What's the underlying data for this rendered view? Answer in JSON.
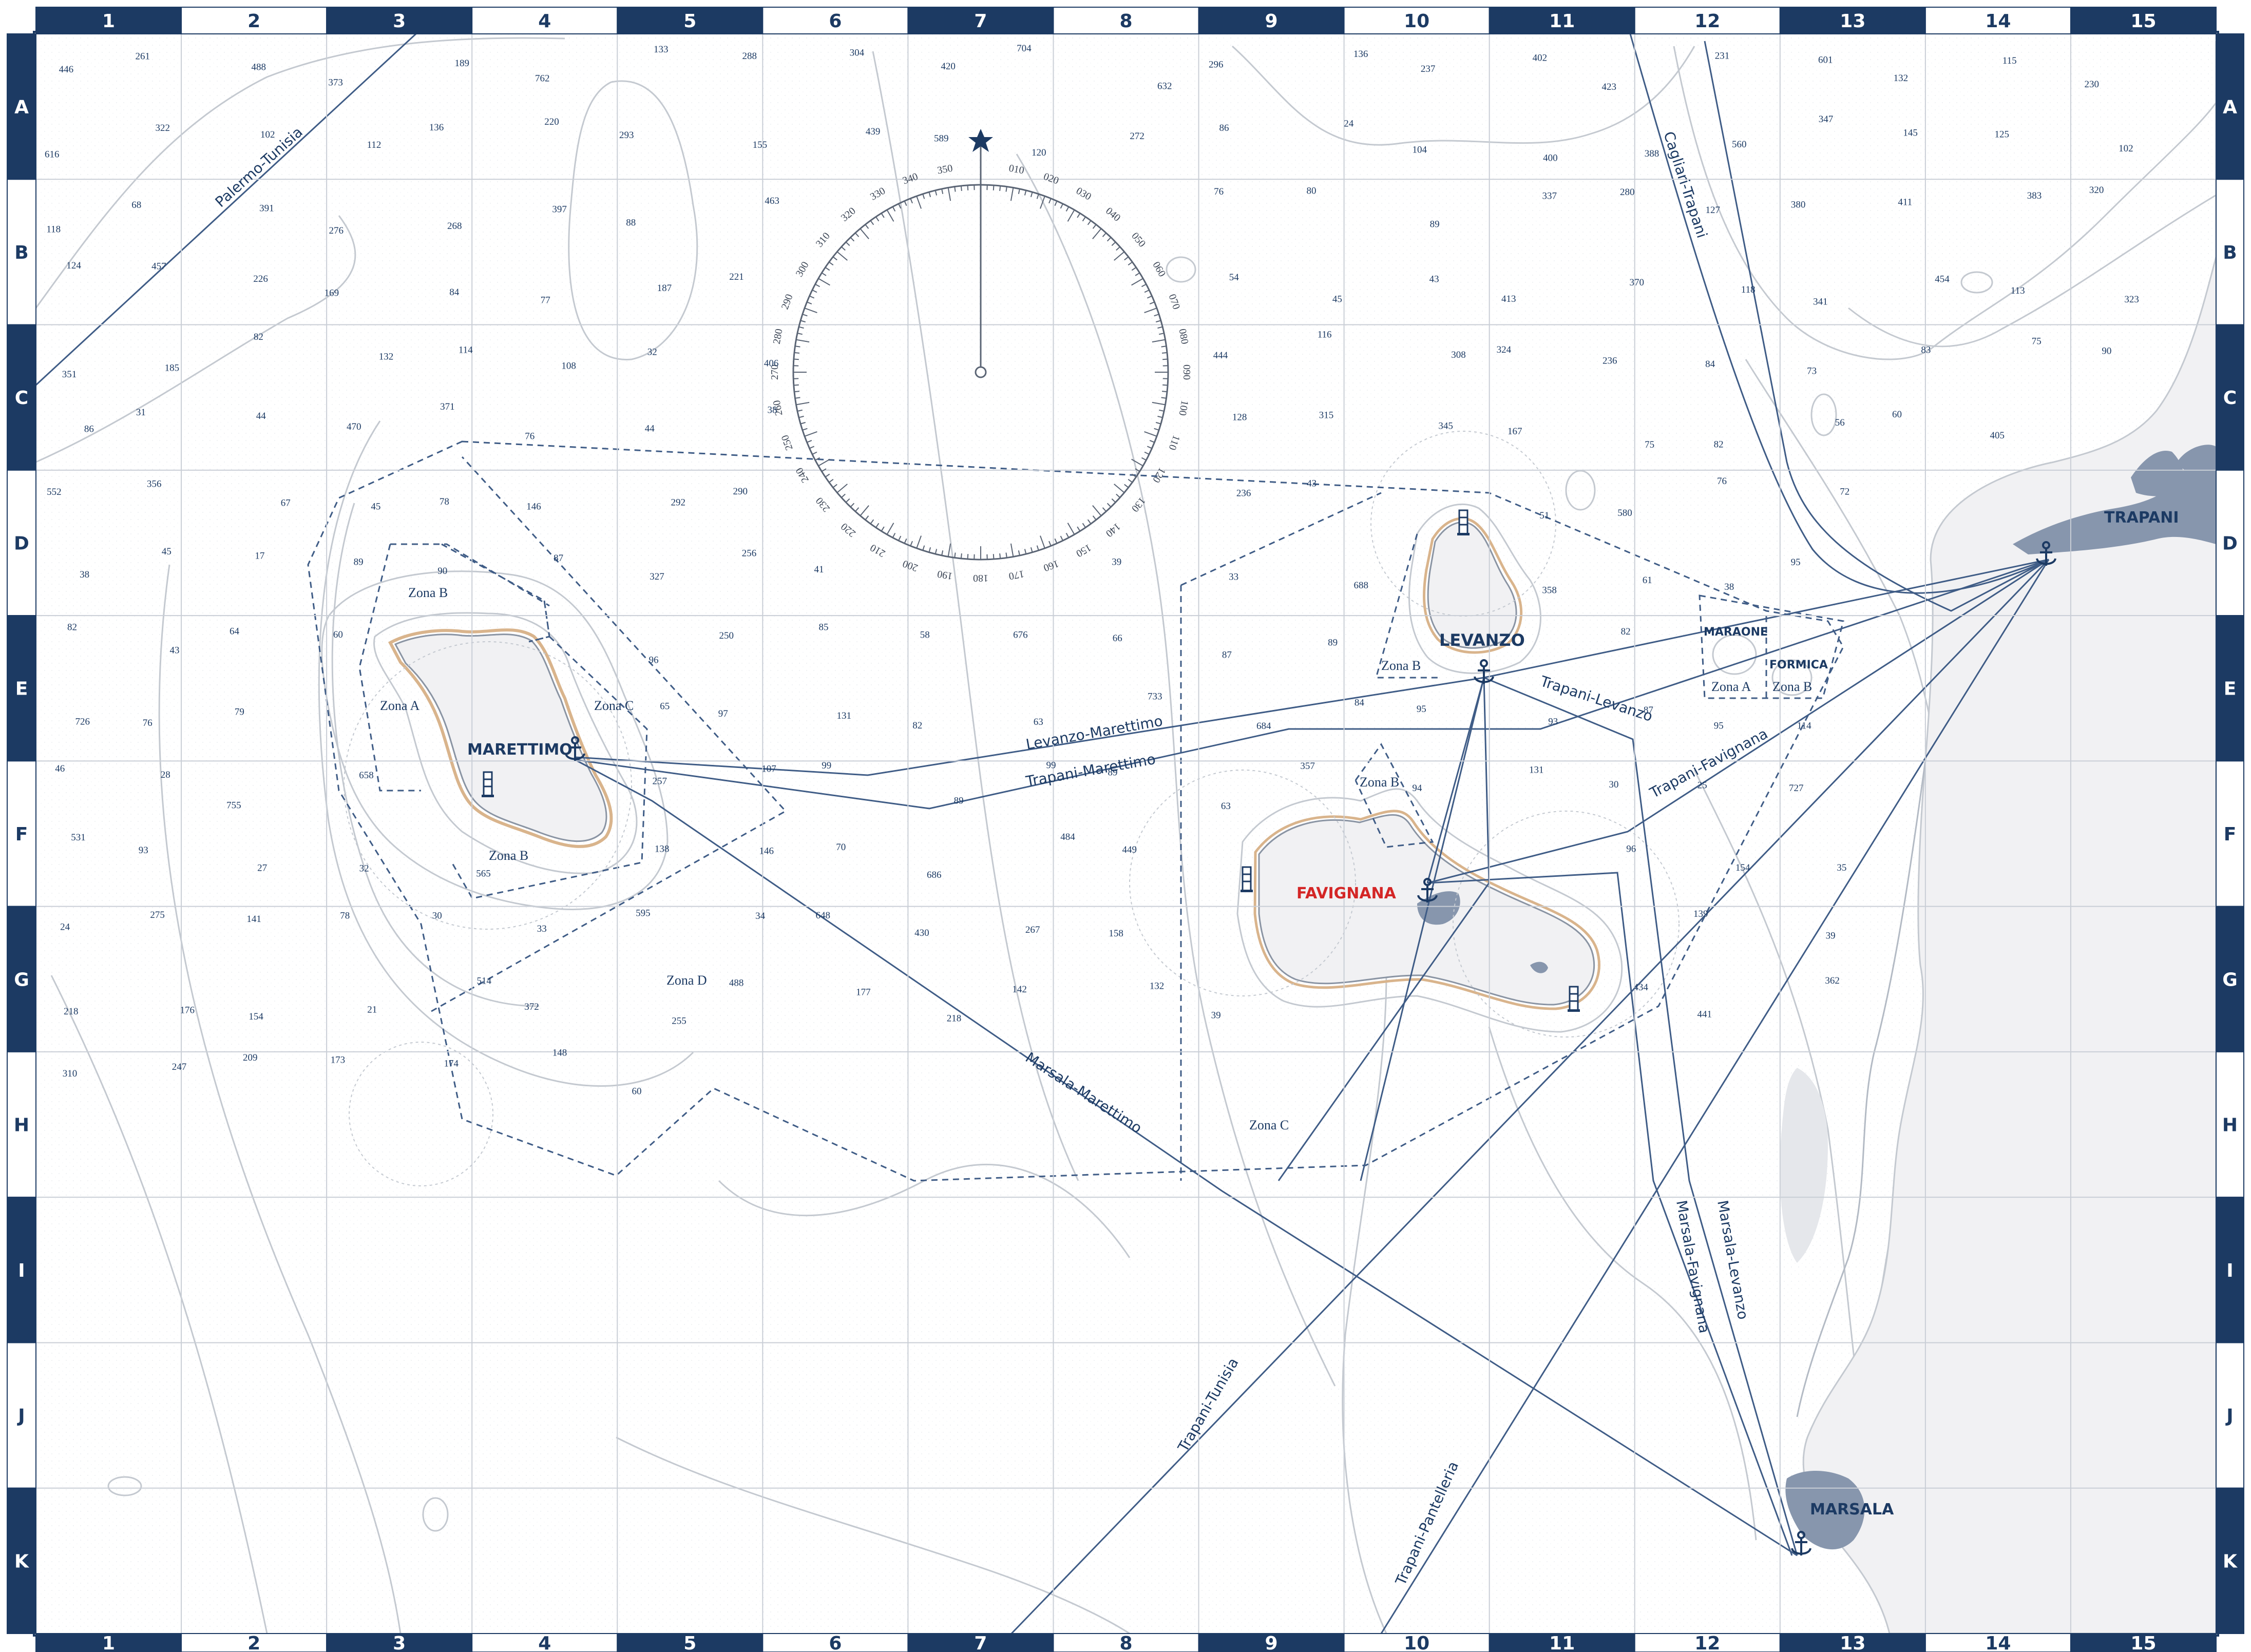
{
  "colors": {
    "navy": "#1c3a63",
    "sea": "#fbfbfb",
    "land": "#f1f1f3",
    "lagoon": "#8796ad",
    "shore": "#d9b48c",
    "contour": "#c4c9d0",
    "grid": "#c9ced6",
    "route": "#3f5c86",
    "highlight": "#d42626"
  },
  "frame": {
    "columns": [
      "1",
      "2",
      "3",
      "4",
      "5",
      "6",
      "7",
      "8",
      "9",
      "10",
      "11",
      "12",
      "13",
      "14",
      "15"
    ],
    "rows": [
      "A",
      "B",
      "C",
      "D",
      "E",
      "F",
      "G",
      "H",
      "I",
      "J",
      "K"
    ]
  },
  "icons": {
    "anchor": "anchor-icon",
    "lighthouse": "lighthouse-icon",
    "north": "star-icon"
  },
  "islands": {
    "marettimo": "MARETTIMO",
    "levanzo": "LEVANZO",
    "favignana": "FAVIGNANA",
    "maraone": "MARAONE",
    "formica": "FORMICA"
  },
  "towns": {
    "trapani": "TRAPANI",
    "marsala": "MARSALA"
  },
  "routes": {
    "palermo_tunisia": "Palermo-Tunisia",
    "cagliari_trapani": "Cagliari-Trapani",
    "levanzo_marettimo": "Levanzo-Marettimo",
    "trapani_marettimo": "Trapani-Marettimo",
    "trapani_levanzo": "Trapani-Levanzo",
    "trapani_favignana": "Trapani-Favignana",
    "marsala_marettimo": "Marsala-Marettimo",
    "marsala_levanzo": "Marsala-Levanzo",
    "marsala_favignana": "Marsala-Favignana",
    "trapani_tunisia": "Trapani-Tunisia",
    "trapani_pantelleria": "Trapani-Pantelleria"
  },
  "zones": {
    "marettimo_a": "Zona A",
    "marettimo_b_north": "Zona B",
    "marettimo_b_south": "Zona B",
    "marettimo_c": "Zona C",
    "zona_d": "Zona D",
    "levanzo_b": "Zona B",
    "favignana_b": "Zona B",
    "zona_c_south": "Zona C",
    "formiche_a": "Zona A",
    "formiche_b": "Zona B"
  },
  "compass": {
    "labels": [
      "010",
      "020",
      "030",
      "040",
      "050",
      "060",
      "070",
      "080",
      "090",
      "100",
      "110",
      "120",
      "130",
      "140",
      "150",
      "160",
      "170",
      "180",
      "190",
      "200",
      "210",
      "220",
      "230",
      "240",
      "250",
      "260",
      "270",
      "280",
      "290",
      "300",
      "310",
      "320",
      "330",
      "340",
      "350"
    ]
  },
  "soundings": [
    "446",
    "261",
    "488",
    "373",
    "189",
    "762",
    "133",
    "288",
    "304",
    "420",
    "704",
    "632",
    "296",
    "136",
    "237",
    "402",
    "423",
    "231",
    "601",
    "132",
    "115",
    "230",
    "616",
    "322",
    "102",
    "112",
    "136",
    "220",
    "293",
    "155",
    "439",
    "589",
    "120",
    "272",
    "86",
    "24",
    "104",
    "400",
    "388",
    "560",
    "347",
    "145",
    "125",
    "102",
    "118",
    "68",
    "391",
    "276",
    "268",
    "397",
    "88",
    "463",
    "76",
    "80",
    "89",
    "337",
    "280",
    "127",
    "380",
    "411",
    "383",
    "320",
    "124",
    "457",
    "226",
    "169",
    "84",
    "77",
    "187",
    "221",
    "54",
    "45",
    "43",
    "413",
    "370",
    "118",
    "341",
    "454",
    "113",
    "323",
    "351",
    "185",
    "82",
    "132",
    "114",
    "108",
    "32",
    "406",
    "444",
    "116",
    "308",
    "324",
    "236",
    "84",
    "73",
    "83",
    "75",
    "90",
    "86",
    "31",
    "44",
    "470",
    "371",
    "76",
    "44",
    "38",
    "128",
    "315",
    "345",
    "167",
    "75",
    "82",
    "56",
    "60",
    "405",
    "552",
    "356",
    "67",
    "45",
    "78",
    "146",
    "292",
    "290",
    "236",
    "43",
    "51",
    "580",
    "76",
    "72",
    "38",
    "45",
    "17",
    "89",
    "90",
    "87",
    "327",
    "256",
    "41",
    "39",
    "33",
    "688",
    "358",
    "61",
    "38",
    "95",
    "82",
    "43",
    "64",
    "60",
    "96",
    "250",
    "85",
    "58",
    "676",
    "66",
    "87",
    "89",
    "82",
    "726",
    "76",
    "79",
    "65",
    "97",
    "131",
    "82",
    "63",
    "733",
    "684",
    "84",
    "95",
    "93",
    "87",
    "95",
    "114",
    "46",
    "28",
    "755",
    "658",
    "257",
    "107",
    "99",
    "89",
    "99",
    "89",
    "63",
    "357",
    "94",
    "131",
    "30",
    "25",
    "727",
    "531",
    "93",
    "27",
    "32",
    "565",
    "138",
    "146",
    "70",
    "686",
    "484",
    "449",
    "96",
    "154",
    "35",
    "24",
    "275",
    "141",
    "78",
    "30",
    "33",
    "595",
    "34",
    "648",
    "430",
    "267",
    "158",
    "139",
    "39",
    "218",
    "176",
    "154",
    "21",
    "514",
    "372",
    "255",
    "488",
    "177",
    "218",
    "142",
    "132",
    "39",
    "434",
    "441",
    "362",
    "310",
    "247",
    "209",
    "173",
    "174",
    "148",
    "60"
  ]
}
